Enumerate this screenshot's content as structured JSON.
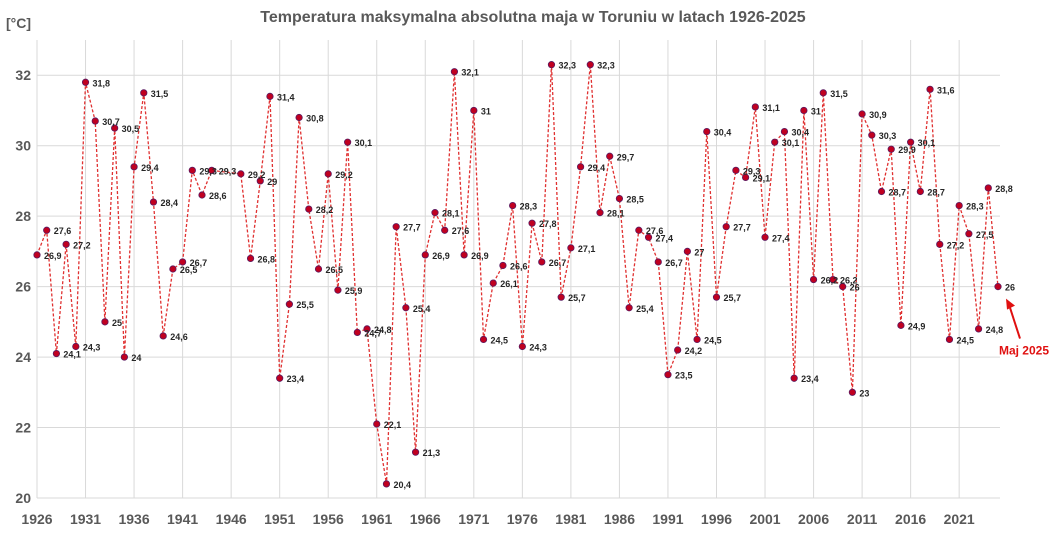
{
  "chart_data": {
    "type": "line",
    "title": "Temperatura maksymalna absolutna maja w Toruniu w latach 1926-2025",
    "ylabel": "[°C]",
    "xlabel": "",
    "ylim": [
      20,
      33
    ],
    "yticks": [
      20,
      22,
      24,
      26,
      28,
      30,
      32
    ],
    "xlim": [
      1926,
      2025
    ],
    "xticks": [
      1926,
      1931,
      1936,
      1941,
      1946,
      1951,
      1956,
      1961,
      1966,
      1971,
      1976,
      1981,
      1986,
      1991,
      1996,
      2001,
      2006,
      2011,
      2016,
      2021
    ],
    "grid": true,
    "colors": {
      "line": "#e03030",
      "marker": "#c00020",
      "marker_edge": "#5a1a60",
      "annotation": "#e01010"
    },
    "series": [
      {
        "points": [
          [
            1926,
            26.9
          ],
          [
            1927,
            27.6
          ],
          [
            1928,
            24.1
          ],
          [
            1929,
            27.2
          ],
          [
            1930,
            24.3
          ],
          [
            1931,
            31.8
          ],
          [
            1932,
            30.7
          ],
          [
            1933,
            25.0
          ],
          [
            1934,
            30.5
          ],
          [
            1935,
            24.0
          ],
          [
            1936,
            29.4
          ],
          [
            1937,
            31.5
          ],
          [
            1938,
            28.4
          ],
          [
            1939,
            24.6
          ],
          [
            1940,
            26.5
          ],
          [
            1941,
            26.7
          ],
          [
            1942,
            29.3
          ],
          [
            1943,
            28.6
          ],
          [
            1944,
            29.3
          ],
          [
            1947,
            29.2
          ],
          [
            1948,
            26.8
          ],
          [
            1949,
            29.0
          ],
          [
            1950,
            31.4
          ],
          [
            1951,
            23.4
          ],
          [
            1952,
            25.5
          ],
          [
            1953,
            30.8
          ],
          [
            1954,
            28.2
          ],
          [
            1955,
            26.5
          ],
          [
            1956,
            29.2
          ],
          [
            1957,
            25.9
          ],
          [
            1958,
            30.1
          ],
          [
            1959,
            24.7
          ],
          [
            1960,
            24.8
          ],
          [
            1961,
            22.1
          ],
          [
            1962,
            20.4
          ],
          [
            1963,
            27.7
          ],
          [
            1964,
            25.4
          ],
          [
            1965,
            21.3
          ],
          [
            1966,
            26.9
          ],
          [
            1967,
            28.1
          ],
          [
            1968,
            27.6
          ],
          [
            1969,
            32.1
          ],
          [
            1970,
            26.9
          ],
          [
            1971,
            31.0
          ],
          [
            1972,
            24.5
          ],
          [
            1973,
            26.1
          ],
          [
            1974,
            26.6
          ],
          [
            1975,
            28.3
          ],
          [
            1976,
            24.3
          ],
          [
            1977,
            27.8
          ],
          [
            1978,
            26.7
          ],
          [
            1979,
            32.3
          ],
          [
            1980,
            25.7
          ],
          [
            1981,
            27.1
          ],
          [
            1982,
            29.4
          ],
          [
            1983,
            32.3
          ],
          [
            1984,
            28.1
          ],
          [
            1985,
            29.7
          ],
          [
            1986,
            28.5
          ],
          [
            1987,
            25.4
          ],
          [
            1988,
            27.6
          ],
          [
            1989,
            27.4
          ],
          [
            1990,
            26.7
          ],
          [
            1991,
            23.5
          ],
          [
            1992,
            24.2
          ],
          [
            1993,
            27.0
          ],
          [
            1994,
            24.5
          ],
          [
            1995,
            30.4
          ],
          [
            1996,
            25.7
          ],
          [
            1997,
            27.7
          ],
          [
            1998,
            29.3
          ],
          [
            1999,
            29.1
          ],
          [
            2000,
            31.1
          ],
          [
            2001,
            27.4
          ],
          [
            2002,
            30.1
          ],
          [
            2003,
            30.4
          ],
          [
            2004,
            23.4
          ],
          [
            2005,
            31.0
          ],
          [
            2006,
            26.2
          ],
          [
            2007,
            31.5
          ],
          [
            2008,
            26.2
          ],
          [
            2009,
            26.0
          ],
          [
            2010,
            23.0
          ],
          [
            2011,
            30.9
          ],
          [
            2012,
            30.3
          ],
          [
            2013,
            28.7
          ],
          [
            2014,
            29.9
          ],
          [
            2015,
            24.9
          ],
          [
            2016,
            30.1
          ],
          [
            2017,
            28.7
          ],
          [
            2018,
            31.6
          ],
          [
            2019,
            27.2
          ],
          [
            2020,
            24.5
          ],
          [
            2021,
            28.3
          ],
          [
            2022,
            27.5
          ],
          [
            2023,
            24.8
          ],
          [
            2024,
            28.8
          ],
          [
            2025,
            26.0
          ]
        ]
      }
    ],
    "annotations": [
      {
        "text": "Maj 2025",
        "target": [
          2025,
          26.0
        ]
      }
    ]
  }
}
